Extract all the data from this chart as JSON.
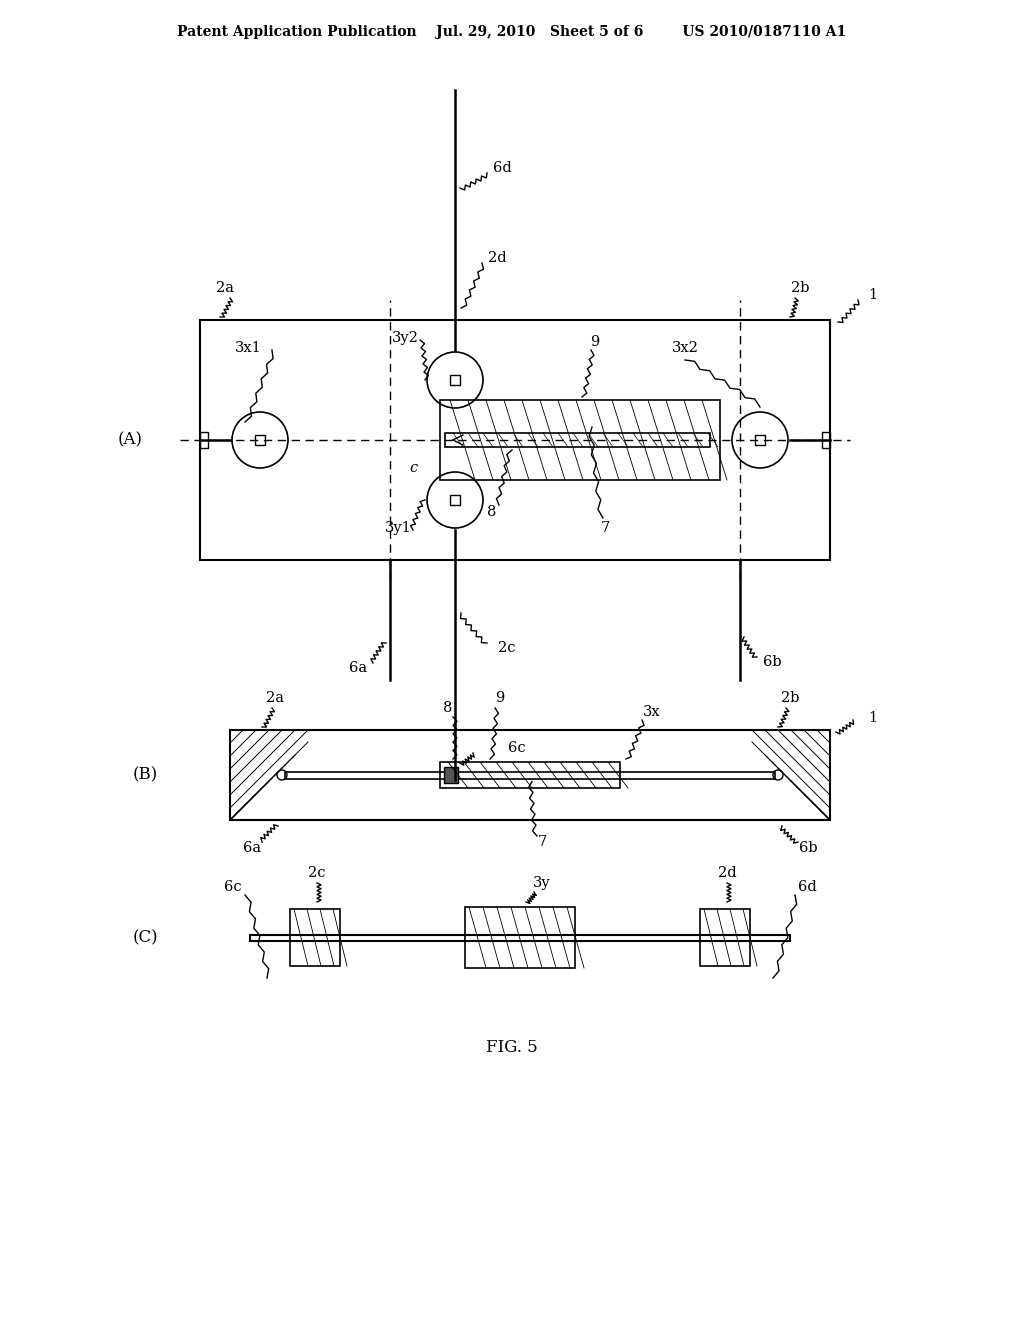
{
  "bg_color": "#ffffff",
  "text_color": "#000000",
  "header_text": "Patent Application Publication    Jul. 29, 2010   Sheet 5 of 6        US 2010/0187110 A1",
  "fig_label": "FIG. 5",
  "label_A": "(A)",
  "label_B": "(B)",
  "label_C": "(C)"
}
